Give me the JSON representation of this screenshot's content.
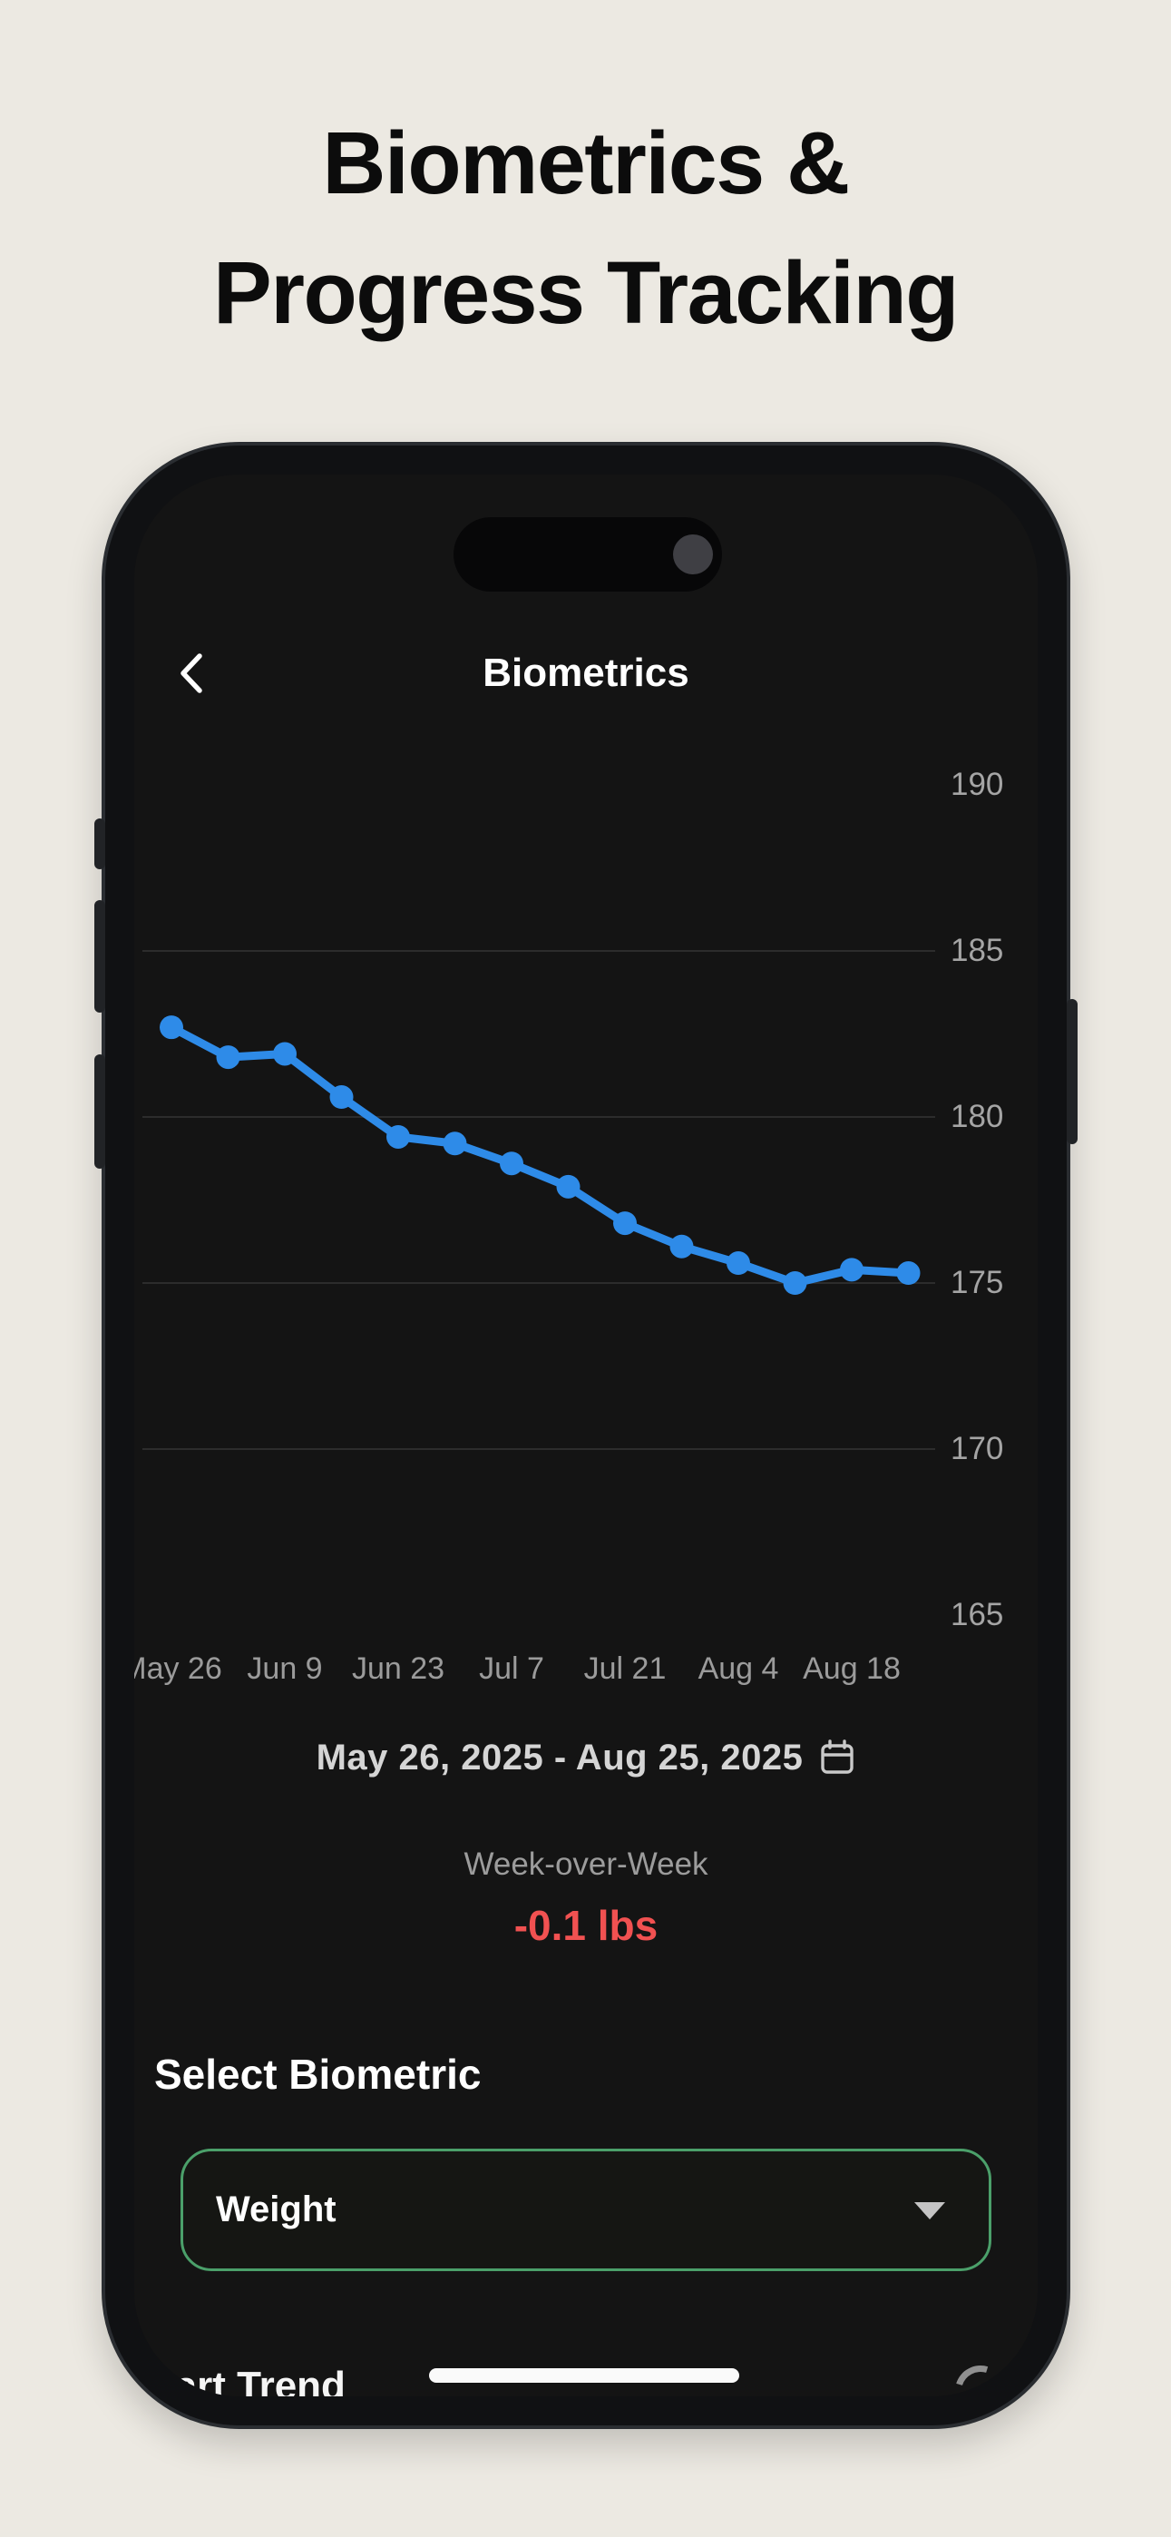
{
  "page": {
    "background": "#ECE9E2",
    "hero_line1": "Biometrics &",
    "hero_line2": "Progress Tracking"
  },
  "app": {
    "header": {
      "title": "Biometrics",
      "back_icon": "chevron-left"
    },
    "date_range": {
      "label": "May 26, 2025 - Aug 25, 2025",
      "icon": "calendar"
    },
    "week_over_week": {
      "label": "Week-over-Week",
      "value": "-0.1 lbs",
      "value_color": "#F15151"
    },
    "select_biometric": {
      "title": "Select Biometric",
      "selected_value": "Weight",
      "dropdown_icon": "caret-down",
      "border_color": "#4BA06A"
    },
    "footer": {
      "section_title": "Chart Trend"
    }
  },
  "chart_data": {
    "type": "line",
    "title": "",
    "xlabel": "",
    "ylabel": "",
    "unit": "lbs",
    "x": [
      "May 26",
      "Jun 2",
      "Jun 9",
      "Jun 16",
      "Jun 23",
      "Jun 30",
      "Jul 7",
      "Jul 14",
      "Jul 21",
      "Jul 28",
      "Aug 4",
      "Aug 11",
      "Aug 18",
      "Aug 25"
    ],
    "series": [
      {
        "name": "Weight",
        "values": [
          182.7,
          181.8,
          181.9,
          180.6,
          179.4,
          179.2,
          178.6,
          177.9,
          176.8,
          176.1,
          175.6,
          175.0,
          175.4,
          175.3
        ]
      }
    ],
    "x_tick_labels": [
      "May 26",
      "Jun 9",
      "Jun 23",
      "Jul 7",
      "Jul 21",
      "Aug 4",
      "Aug 18"
    ],
    "y_ticks": [
      190,
      185,
      180,
      175,
      170,
      165
    ],
    "y_gridlines": [
      185,
      180,
      175,
      170
    ],
    "ylim": [
      164,
      191
    ],
    "grid": true,
    "legend": false,
    "line_color": "#2E8BE8",
    "marker": "circle"
  }
}
